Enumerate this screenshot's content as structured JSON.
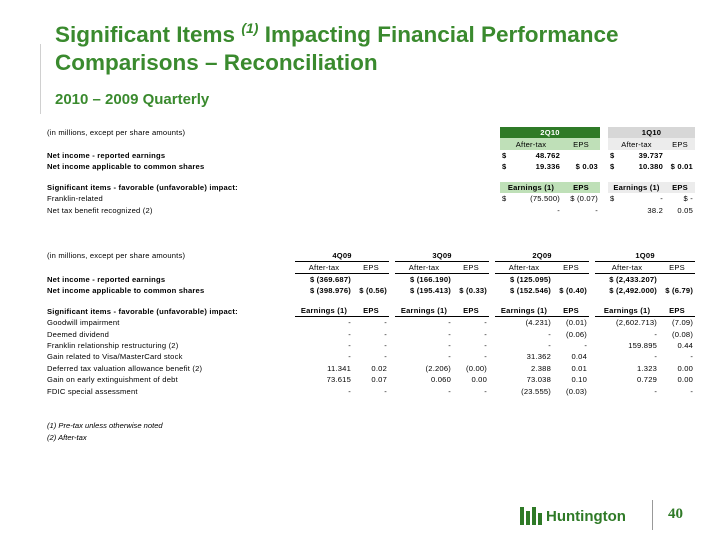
{
  "title": {
    "line1_a": "Significant Items",
    "line1_sup": "(1)",
    "line1_b": "Impacting Financial Performance",
    "line2": "Comparisons – Reconciliation"
  },
  "subtitle": "2010 – 2009 Quarterly",
  "top_table": {
    "caption": "(in millions, except per share amounts)",
    "periods": [
      "2Q10",
      "1Q10"
    ],
    "sub_headers": [
      "After-tax",
      "EPS",
      "After-tax",
      "EPS"
    ],
    "net_income_label": "Net income - reported earnings",
    "net_income": [
      "$",
      "48.762",
      "",
      "$",
      "39.737",
      ""
    ],
    "common_label": "Net income applicable to common shares",
    "common": [
      "$",
      "19.336",
      "$ 0.03",
      "$",
      "10.380",
      "$ 0.01"
    ],
    "sig_label": "Significant items - favorable (unfavorable) impact:",
    "sig_headers": [
      "Earnings (1)",
      "EPS",
      "Earnings (1)",
      "EPS"
    ],
    "rows": [
      {
        "label": "Franklin-related",
        "v": [
          "$",
          "(75.500)",
          "$ (0.07)",
          "$",
          "-",
          "$ -"
        ]
      },
      {
        "label": "Net tax benefit recognized (2)",
        "v": [
          "",
          "-",
          "-",
          "",
          "38.2",
          "0.05"
        ]
      }
    ]
  },
  "bottom_table": {
    "caption": "(in millions, except per share amounts)",
    "periods": [
      "4Q09",
      "3Q09",
      "2Q09",
      "1Q09"
    ],
    "sub_headers": [
      "After-tax",
      "EPS",
      "After-tax",
      "EPS",
      "After-tax",
      "EPS",
      "After-tax",
      "EPS"
    ],
    "net_income_label": "Net income - reported earnings",
    "net_income": [
      "$ (369.687)",
      "",
      "$ (166.190)",
      "",
      "$ (125.095)",
      "",
      "$ (2,433.207)",
      ""
    ],
    "common_label": "Net income applicable to common shares",
    "common": [
      "$ (398.976)",
      "$ (0.56)",
      "$ (195.413)",
      "$ (0.33)",
      "$ (152.546)",
      "$ (0.40)",
      "$ (2,492.000)",
      "$ (6.79)"
    ],
    "sig_label": "Significant items - favorable (unfavorable) impact:",
    "sig_headers": [
      "Earnings (1)",
      "EPS",
      "Earnings (1)",
      "EPS",
      "Earnings (1)",
      "EPS",
      "Earnings (1)",
      "EPS"
    ],
    "rows": [
      {
        "label": "Goodwill impairment",
        "v": [
          "-",
          "-",
          "-",
          "-",
          "(4.231)",
          "(0.01)",
          "(2,602.713)",
          "(7.09)"
        ]
      },
      {
        "label": "Deemed dividend",
        "v": [
          "-",
          "-",
          "-",
          "-",
          "-",
          "(0.06)",
          "-",
          "(0.08)"
        ]
      },
      {
        "label": "Franklin relationship restructuring (2)",
        "v": [
          "-",
          "-",
          "-",
          "-",
          "-",
          "-",
          "159.895",
          "0.44"
        ]
      },
      {
        "label": "Gain related to Visa/MasterCard stock",
        "v": [
          "-",
          "-",
          "-",
          "-",
          "31.362",
          "0.04",
          "-",
          "-"
        ]
      },
      {
        "label": "Deferred tax valuation allowance benefit (2)",
        "v": [
          "11.341",
          "0.02",
          "(2.206)",
          "(0.00)",
          "2.388",
          "0.01",
          "1.323",
          "0.00"
        ]
      },
      {
        "label": "Gain on early extinguishment of debt",
        "v": [
          "73.615",
          "0.07",
          "0.060",
          "0.00",
          "73.038",
          "0.10",
          "0.729",
          "0.00"
        ]
      },
      {
        "label": "FDIC special assessment",
        "v": [
          "-",
          "-",
          "-",
          "-",
          "(23.555)",
          "(0.03)",
          "-",
          "-"
        ]
      }
    ]
  },
  "notes": [
    "(1) Pre-tax unless otherwise noted",
    "(2) After-tax"
  ],
  "footer": {
    "logo_text": "Huntington",
    "page_number": "40"
  },
  "colors": {
    "brand_green": "#3a8a2e",
    "header_green": "#2f7a27",
    "header_gray": "#d7d7d7"
  },
  "icons": [
    "huntington-logo-icon"
  ]
}
